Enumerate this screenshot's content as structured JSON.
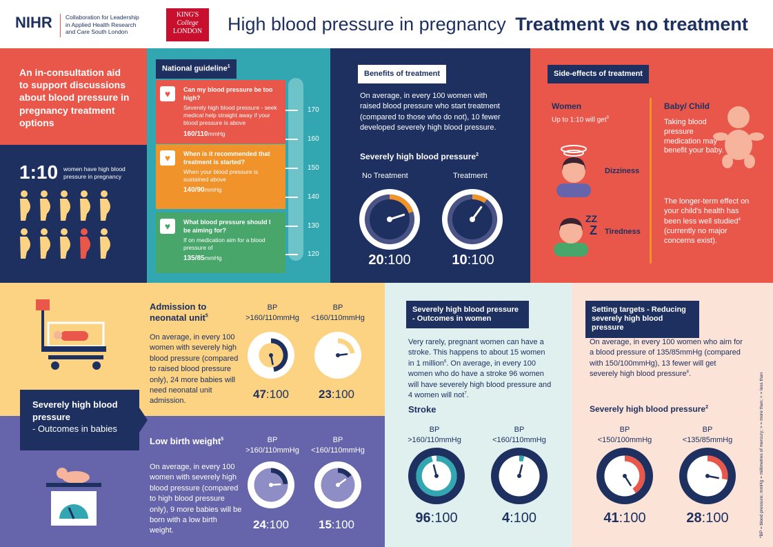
{
  "header": {
    "nihr_logo": "NIHR",
    "clahrc_text": [
      "Collaboration for Leadership",
      "in Applied Health Research",
      "and Care South London"
    ],
    "kings_logo": [
      "KING'S",
      "College",
      "LONDON"
    ],
    "title_light": "High blood pressure in pregnancy",
    "title_bold": "Treatment vs no treatment"
  },
  "intro": {
    "text": "An in-consultation aid to support discussions about blood pressure in pregnancy treatment options"
  },
  "prevalence": {
    "ratio": "1:10",
    "text": "women have high blood pressure in pregnancy",
    "icons_total": 10,
    "icons_highlighted": 1
  },
  "guideline": {
    "title": "National guideline",
    "ref": "1",
    "items": [
      {
        "question": "Can my blood pressure be too high?",
        "text": "Severely high blood pressure - seek medical help straight away if your blood pressure is above",
        "value": "160/110",
        "unit": "mmHg",
        "color": "#e9574b"
      },
      {
        "question": "When is it recommended that treatment is started?",
        "text": "When your blood pressure is sustained above",
        "value": "140/90",
        "unit": "mmHg",
        "color": "#f0932b"
      },
      {
        "question": "What blood pressure should I be aiming for?",
        "text": "If on medication aim for a blood pressure of",
        "value": "135/85",
        "unit": "mmHg",
        "color": "#48a66a"
      }
    ],
    "scale": [
      "170",
      "160",
      "150",
      "140",
      "130",
      "120"
    ]
  },
  "benefits": {
    "title": "Benefits of treatment",
    "text": "On average, in every 100 women with raised blood pressure who start treatment (compared to those who do not), 10 fewer developed severely high blood pressure.",
    "subtitle": "Severely high blood pressure",
    "sub_ref": "2",
    "dials": [
      {
        "label": "No Treatment",
        "num": "20",
        "den": "100",
        "fraction": 0.2
      },
      {
        "label": "Treatment",
        "num": "10",
        "den": "100",
        "fraction": 0.1
      }
    ]
  },
  "side_effects": {
    "title": "Side-effects of treatment",
    "women_title": "Women",
    "women_text": "Up to 1:10 will get",
    "women_ref": "3",
    "dizziness": "Dizziness",
    "tiredness": "Tiredness",
    "baby_title": "Baby/ Child",
    "baby_text": "Taking blood pressure medication may benefit your baby.",
    "long_text": "The longer-term effect on your child's health has been less well studied",
    "long_ref": "4",
    "long_text2": "(currently no major concerns exist)."
  },
  "babies": {
    "label_bold": "Severely high blood pressure",
    "label_rest": "- Outcomes in babies",
    "admission": {
      "title": "Admission to neonatal unit",
      "ref": "5",
      "text": "On average, in every 100 women with severely high blood pressure (compared to raised blood pressure only), 24 more babies will need neonatal unit admission.",
      "dials": [
        {
          "bp": "BP",
          "range": ">160/110mmHg",
          "num": "47",
          "den": "100",
          "fraction": 0.47
        },
        {
          "bp": "BP",
          "range": "<160/110mmHg",
          "num": "23",
          "den": "100",
          "fraction": 0.23
        }
      ]
    },
    "lbw": {
      "title": "Low birth weight",
      "ref": "5",
      "text": "On average, in every 100 women with severely high blood pressure (compared to high blood pressure only), 9 more babies will be born with a low birth weight.",
      "dials": [
        {
          "bp": "BP",
          "range": ">160/110mmHg",
          "num": "24",
          "den": "100",
          "fraction": 0.24
        },
        {
          "bp": "BP",
          "range": "<160/110mmHg",
          "num": "15",
          "den": "100",
          "fraction": 0.15
        }
      ]
    }
  },
  "women_outcomes": {
    "title": "Severely high blood pressure - Outcomes in women",
    "text": "Very rarely, pregnant women can have a stroke. This happens to about 15 women in 1 million",
    "ref6": "6",
    "text2": ". On average, in every 100 women who do have a stroke 96 women will have severely high blood pressure and 4 women will not",
    "ref7": "7",
    "stroke": "Stroke",
    "dials": [
      {
        "bp": "BP",
        "range": ">160/110mmHg",
        "num": "96",
        "den": "100",
        "fraction": 0.96
      },
      {
        "bp": "BP",
        "range": "<160/110mmHg",
        "num": "4",
        "den": "100",
        "fraction": 0.04
      }
    ]
  },
  "targets": {
    "title": "Setting targets - Reducing severely high blood pressure",
    "text": "On average, in every 100 women who aim for a blood pressure of 135/85mmHg (compared with 150/100mmHg), 13 fewer will get severely high blood pressure",
    "ref": "8",
    "subtitle": "Severely high blood pressure",
    "sub_ref": "2",
    "dials": [
      {
        "bp": "BP",
        "range": "<150/100mmHg",
        "num": "41",
        "den": "100",
        "fraction": 0.41
      },
      {
        "bp": "BP",
        "range": "<135/85mmHg",
        "num": "28",
        "den": "100",
        "fraction": 0.28
      }
    ]
  },
  "footnote": "*BP = blood pressure; mmHg = millimetres of mercury; > = more than; < = less than",
  "colors": {
    "navy": "#1e3060",
    "coral": "#e9574b",
    "orange": "#f0932b",
    "green": "#48a66a",
    "teal": "#32a7b2",
    "yellow": "#fbd383",
    "purple": "#6664ab",
    "mint": "#dff0ef",
    "peach": "#fbe3d8"
  }
}
